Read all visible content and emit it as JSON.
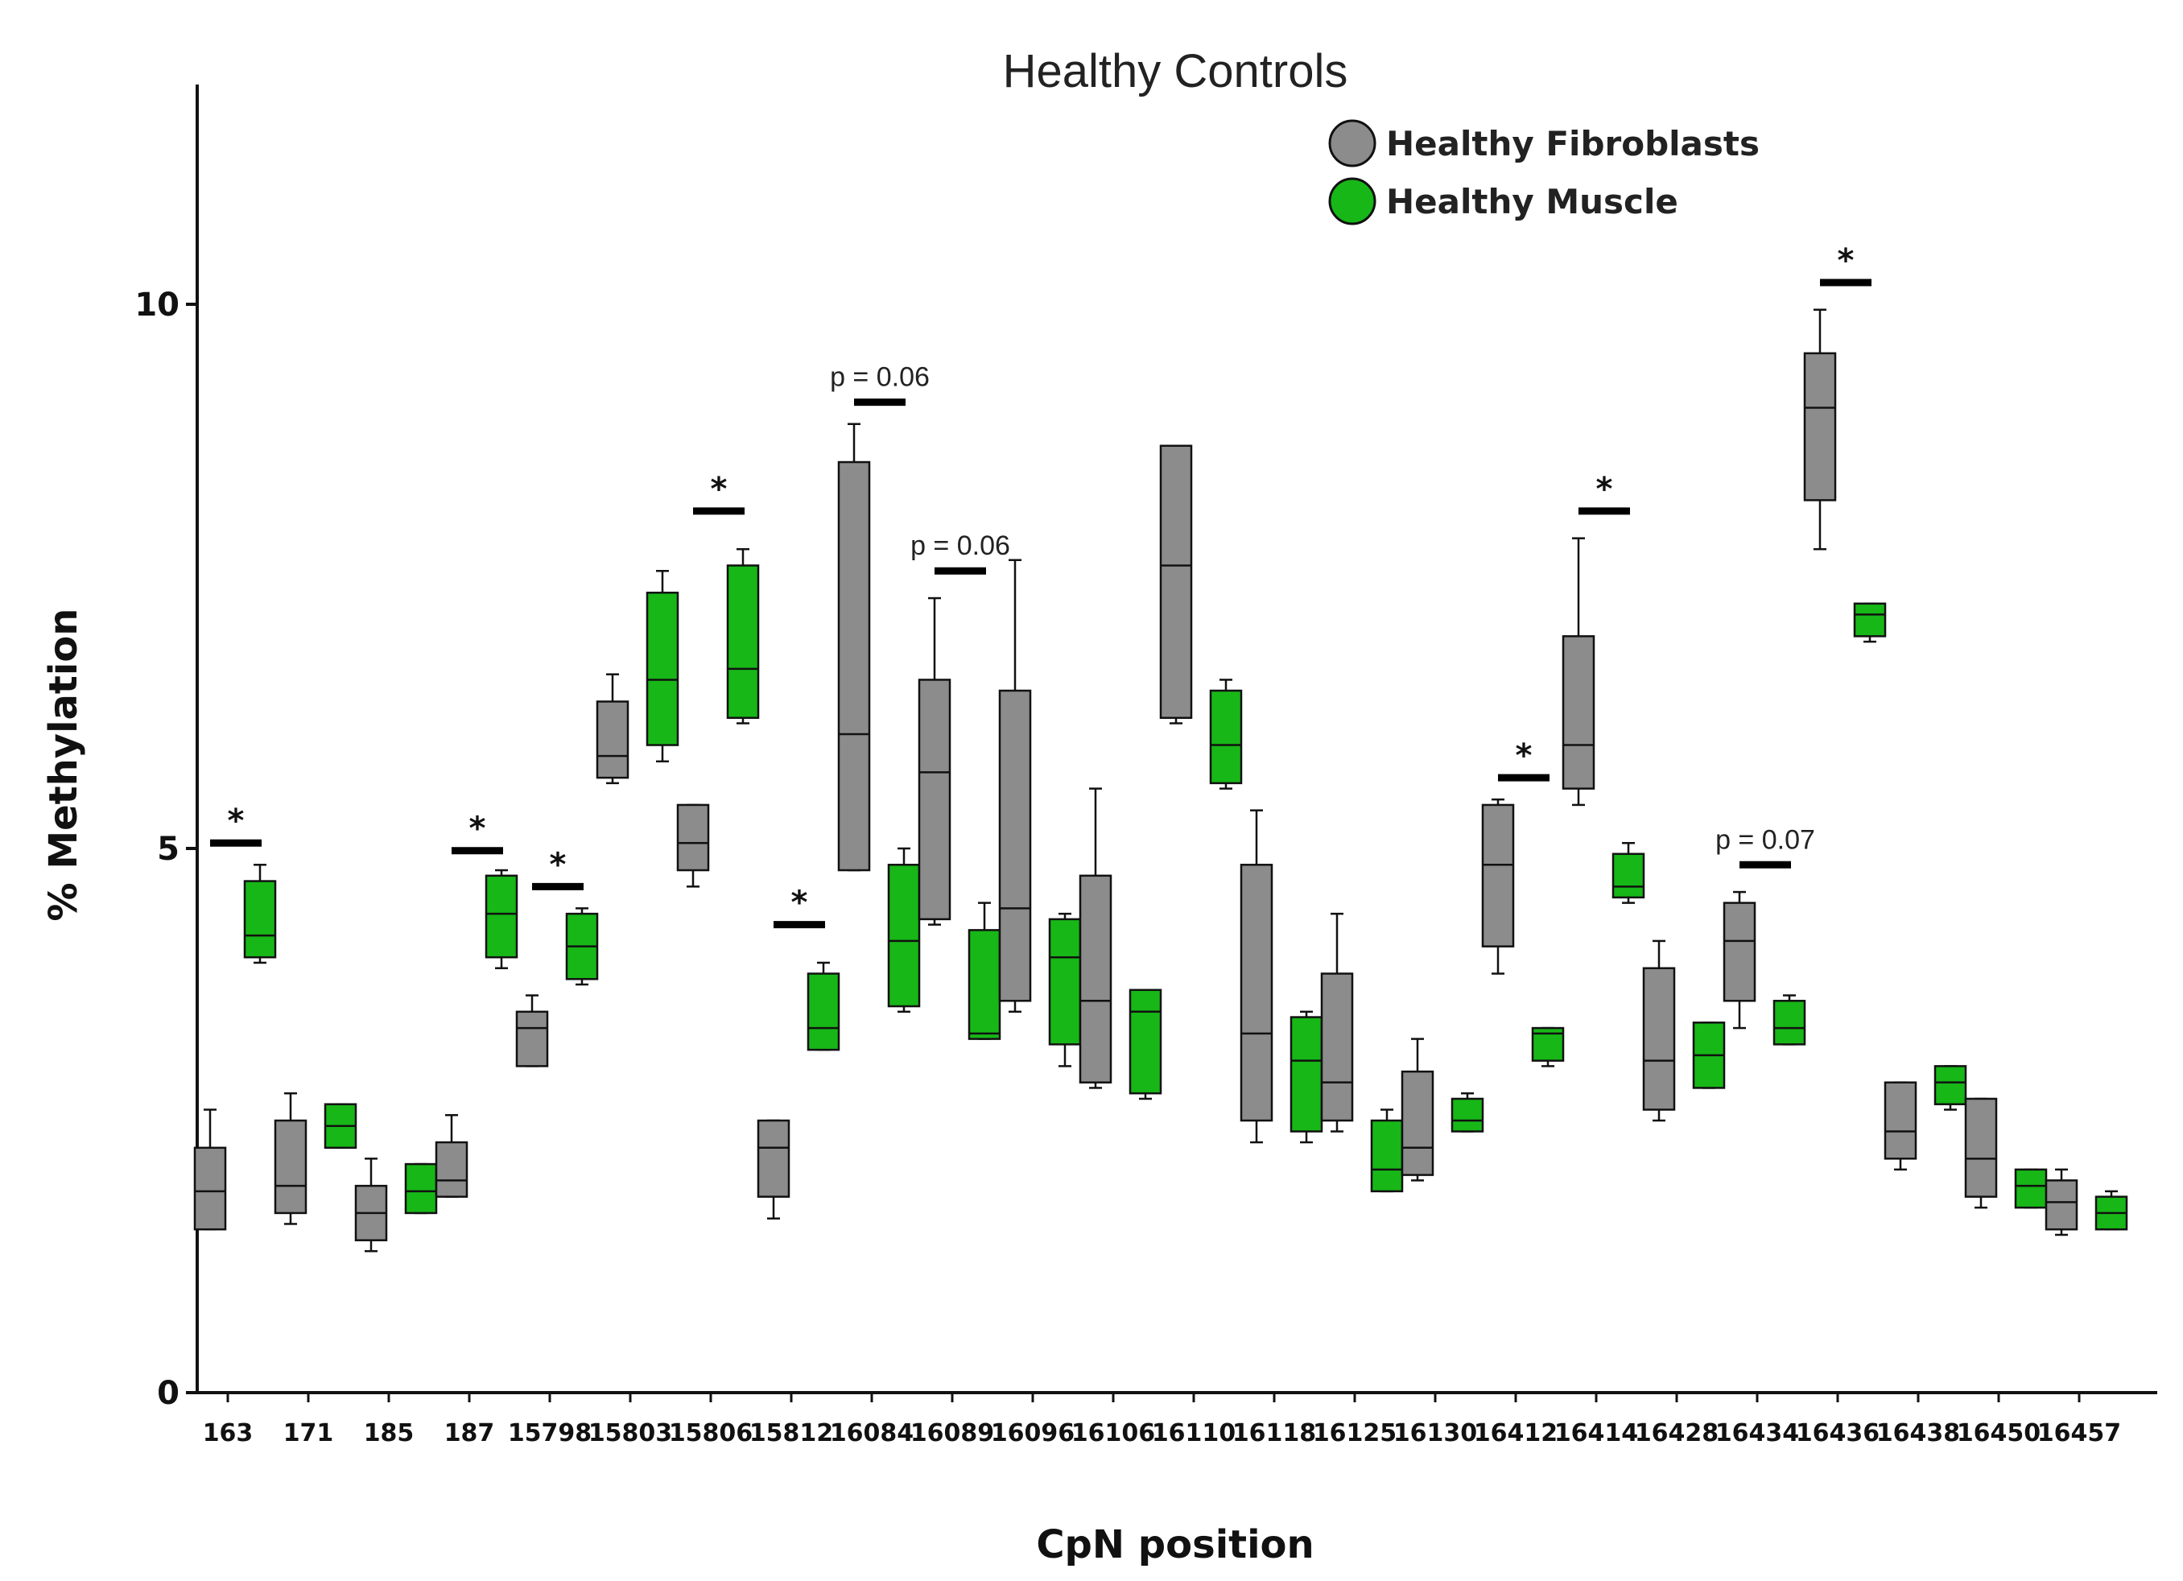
{
  "chart_data": {
    "type": "boxplot",
    "title": "Healthy Controls",
    "xlabel": "CpN position",
    "ylabel": "% Methylation",
    "ylim": [
      0,
      12
    ],
    "yticks": [
      0,
      5,
      10
    ],
    "categories": [
      "163",
      "171",
      "185",
      "187",
      "15798",
      "15803",
      "15806",
      "15812",
      "16084",
      "16089",
      "16096",
      "16106",
      "16110",
      "16118",
      "16125",
      "16130",
      "16412",
      "16414",
      "16428",
      "16434",
      "16436",
      "16438",
      "16450",
      "16457"
    ],
    "colors": {
      "fibroblasts": "#8c8c8c",
      "muscle": "#17b717",
      "axis": "#111111",
      "sig_bar": "#000000"
    },
    "series": [
      {
        "name": "Healthy Fibroblasts",
        "boxes": [
          {
            "min": 1.5,
            "q1": 1.5,
            "median": 1.85,
            "q3": 2.25,
            "max": 2.6
          },
          {
            "min": 1.55,
            "q1": 1.65,
            "median": 1.9,
            "q3": 2.5,
            "max": 2.75
          },
          {
            "min": 1.3,
            "q1": 1.4,
            "median": 1.65,
            "q3": 1.9,
            "max": 2.15
          },
          {
            "min": 1.8,
            "q1": 1.8,
            "median": 1.95,
            "q3": 2.3,
            "max": 2.55
          },
          {
            "min": 3.0,
            "q1": 3.0,
            "median": 3.35,
            "q3": 3.5,
            "max": 3.65
          },
          {
            "min": 5.6,
            "q1": 5.65,
            "median": 5.85,
            "q3": 6.35,
            "max": 6.6
          },
          {
            "min": 4.65,
            "q1": 4.8,
            "median": 5.05,
            "q3": 5.4,
            "max": 5.4
          },
          {
            "min": 1.6,
            "q1": 1.8,
            "median": 2.25,
            "q3": 2.5,
            "max": 2.5
          },
          {
            "min": 4.8,
            "q1": 4.8,
            "median": 6.05,
            "q3": 8.55,
            "max": 8.9
          },
          {
            "min": 4.3,
            "q1": 4.35,
            "median": 5.7,
            "q3": 6.55,
            "max": 7.3
          },
          {
            "min": 3.5,
            "q1": 3.6,
            "median": 4.45,
            "q3": 6.45,
            "max": 7.65
          },
          {
            "min": 2.8,
            "q1": 2.85,
            "median": 3.6,
            "q3": 4.75,
            "max": 5.55
          },
          {
            "min": 6.15,
            "q1": 6.2,
            "median": 7.6,
            "q3": 8.7,
            "max": 8.7
          },
          {
            "min": 2.3,
            "q1": 2.5,
            "median": 3.3,
            "q3": 4.85,
            "max": 5.35
          },
          {
            "min": 2.4,
            "q1": 2.5,
            "median": 2.85,
            "q3": 3.85,
            "max": 4.4
          },
          {
            "min": 1.95,
            "q1": 2.0,
            "median": 2.25,
            "q3": 2.95,
            "max": 3.25
          },
          {
            "min": 3.85,
            "q1": 4.1,
            "median": 4.85,
            "q3": 5.4,
            "max": 5.45
          },
          {
            "min": 5.4,
            "q1": 5.55,
            "median": 5.95,
            "q3": 6.95,
            "max": 7.85
          },
          {
            "min": 2.5,
            "q1": 2.6,
            "median": 3.05,
            "q3": 3.9,
            "max": 4.15
          },
          {
            "min": 3.35,
            "q1": 3.6,
            "median": 4.15,
            "q3": 4.5,
            "max": 4.6
          },
          {
            "min": 7.75,
            "q1": 8.2,
            "median": 9.05,
            "q3": 9.55,
            "max": 9.95
          },
          {
            "min": 2.05,
            "q1": 2.15,
            "median": 2.4,
            "q3": 2.85,
            "max": 2.85
          },
          {
            "min": 1.7,
            "q1": 1.8,
            "median": 2.15,
            "q3": 2.7,
            "max": 2.7
          },
          {
            "min": 1.45,
            "q1": 1.5,
            "median": 1.75,
            "q3": 1.95,
            "max": 2.05
          }
        ]
      },
      {
        "name": "Healthy Muscle",
        "boxes": [
          {
            "min": 3.95,
            "q1": 4.0,
            "median": 4.2,
            "q3": 4.7,
            "max": 4.85
          },
          {
            "min": 2.25,
            "q1": 2.25,
            "median": 2.45,
            "q3": 2.65,
            "max": 2.65
          },
          {
            "min": 1.65,
            "q1": 1.65,
            "median": 1.85,
            "q3": 2.1,
            "max": 2.1
          },
          {
            "min": 3.9,
            "q1": 4.0,
            "median": 4.4,
            "q3": 4.75,
            "max": 4.8
          },
          {
            "min": 3.75,
            "q1": 3.8,
            "median": 4.1,
            "q3": 4.4,
            "max": 4.45
          },
          {
            "min": 5.8,
            "q1": 5.95,
            "median": 6.55,
            "q3": 7.35,
            "max": 7.55
          },
          {
            "min": 6.15,
            "q1": 6.2,
            "median": 6.65,
            "q3": 7.6,
            "max": 7.75
          },
          {
            "min": 3.15,
            "q1": 3.15,
            "median": 3.35,
            "q3": 3.85,
            "max": 3.95
          },
          {
            "min": 3.5,
            "q1": 3.55,
            "median": 4.15,
            "q3": 4.85,
            "max": 5.0
          },
          {
            "min": 3.25,
            "q1": 3.25,
            "median": 3.3,
            "q3": 4.25,
            "max": 4.5
          },
          {
            "min": 3.0,
            "q1": 3.2,
            "median": 4.0,
            "q3": 4.35,
            "max": 4.4
          },
          {
            "min": 2.7,
            "q1": 2.75,
            "median": 3.5,
            "q3": 3.7,
            "max": 3.7
          },
          {
            "min": 5.55,
            "q1": 5.6,
            "median": 5.95,
            "q3": 6.45,
            "max": 6.55
          },
          {
            "min": 2.3,
            "q1": 2.4,
            "median": 3.05,
            "q3": 3.45,
            "max": 3.5
          },
          {
            "min": 1.85,
            "q1": 1.85,
            "median": 2.05,
            "q3": 2.5,
            "max": 2.6
          },
          {
            "min": 2.4,
            "q1": 2.4,
            "median": 2.5,
            "q3": 2.7,
            "max": 2.75
          },
          {
            "min": 3.0,
            "q1": 3.05,
            "median": 3.3,
            "q3": 3.35,
            "max": 3.35
          },
          {
            "min": 4.5,
            "q1": 4.55,
            "median": 4.65,
            "q3": 4.95,
            "max": 5.05
          },
          {
            "min": 2.8,
            "q1": 2.8,
            "median": 3.1,
            "q3": 3.4,
            "max": 3.4
          },
          {
            "min": 3.2,
            "q1": 3.2,
            "median": 3.35,
            "q3": 3.6,
            "max": 3.65
          },
          {
            "min": 6.9,
            "q1": 6.95,
            "median": 7.15,
            "q3": 7.25,
            "max": 7.25
          },
          {
            "min": 2.6,
            "q1": 2.65,
            "median": 2.85,
            "q3": 3.0,
            "max": 3.0
          },
          {
            "min": 1.7,
            "q1": 1.7,
            "median": 1.9,
            "q3": 2.05,
            "max": 2.05
          },
          {
            "min": 1.5,
            "q1": 1.5,
            "median": 1.65,
            "q3": 1.8,
            "max": 1.85
          }
        ]
      }
    ],
    "annotations": [
      {
        "category": "163",
        "label": "*",
        "y": 5.05
      },
      {
        "category": "187",
        "label": "*",
        "y": 4.98
      },
      {
        "category": "15798",
        "label": "*",
        "y": 4.65
      },
      {
        "category": "15806",
        "label": "*",
        "y": 8.1
      },
      {
        "category": "15812",
        "label": "*",
        "y": 4.3
      },
      {
        "category": "16084",
        "label": "p = 0.06",
        "y": 9.1
      },
      {
        "category": "16089",
        "label": "p = 0.06",
        "y": 7.55
      },
      {
        "category": "16412",
        "label": "*",
        "y": 5.65
      },
      {
        "category": "16414",
        "label": "*",
        "y": 8.1
      },
      {
        "category": "16434",
        "label": "p = 0.07",
        "y": 4.85
      },
      {
        "category": "16436",
        "label": "*",
        "y": 10.2
      }
    ],
    "legend": {
      "position": "top-right",
      "entries": [
        "Healthy Fibroblasts",
        "Healthy Muscle"
      ]
    }
  }
}
